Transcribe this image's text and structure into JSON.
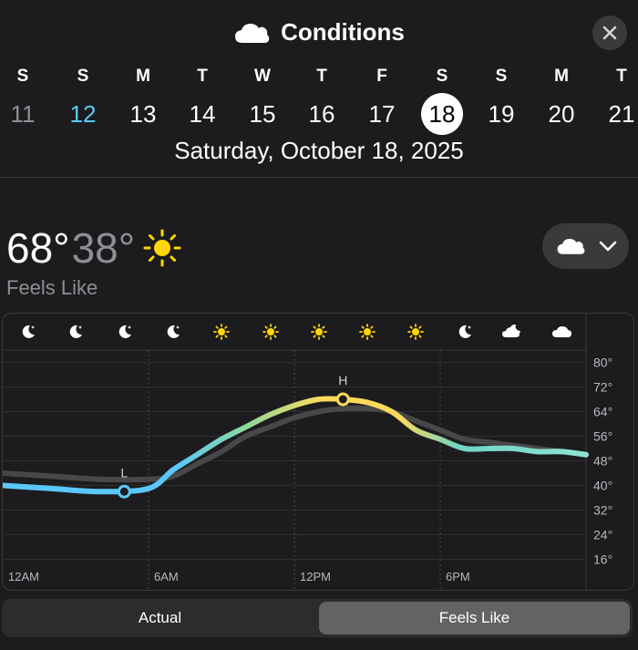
{
  "header": {
    "title": "Conditions",
    "title_icon": "cloud-icon",
    "close_icon": "close-icon"
  },
  "days": [
    {
      "dow": "S",
      "num": "11",
      "state": "muted"
    },
    {
      "dow": "S",
      "num": "12",
      "state": "today"
    },
    {
      "dow": "M",
      "num": "13",
      "state": ""
    },
    {
      "dow": "T",
      "num": "14",
      "state": ""
    },
    {
      "dow": "W",
      "num": "15",
      "state": ""
    },
    {
      "dow": "T",
      "num": "16",
      "state": ""
    },
    {
      "dow": "F",
      "num": "17",
      "state": ""
    },
    {
      "dow": "S",
      "num": "18",
      "state": "selected"
    },
    {
      "dow": "S",
      "num": "19",
      "state": ""
    },
    {
      "dow": "M",
      "num": "20",
      "state": ""
    },
    {
      "dow": "T",
      "num": "21",
      "state": ""
    }
  ],
  "selected_date": "Saturday, October 18, 2025",
  "summary": {
    "high": "68°",
    "low": "38°",
    "icon": "sun-icon",
    "metric_label": "Feels Like"
  },
  "picker": {
    "icon": "cloud-icon",
    "chevron": "chevron-down-icon"
  },
  "hourly_icons": [
    "moon-icon",
    "moon-icon",
    "moon-icon",
    "moon-icon",
    "sun-icon",
    "sun-icon",
    "sun-icon",
    "sun-icon",
    "sun-icon",
    "moon-icon",
    "moon-cloud-icon",
    "cloud-icon"
  ],
  "chart_data": {
    "type": "line",
    "ylim": [
      12,
      84
    ],
    "y_ticks": [
      "80°",
      "72°",
      "64°",
      "56°",
      "48°",
      "40°",
      "32°",
      "24°",
      "16°"
    ],
    "y_tick_values": [
      80,
      72,
      64,
      56,
      48,
      40,
      32,
      24,
      16
    ],
    "x_ticks": [
      "12AM",
      "6AM",
      "12PM",
      "6PM"
    ],
    "x_tick_values": [
      0,
      6,
      12,
      18
    ],
    "x_range": [
      0,
      24
    ],
    "high_marker": {
      "label": "H",
      "x": 14,
      "y": 68
    },
    "low_marker": {
      "label": "L",
      "x": 5,
      "y": 38
    },
    "series": [
      {
        "name": "Actual",
        "color": "#48484a",
        "x": [
          0,
          2,
          4,
          6,
          7,
          8,
          9,
          10,
          11,
          12,
          13,
          14,
          15,
          16,
          17,
          18,
          19,
          20,
          21,
          22,
          23,
          24
        ],
        "y": [
          44,
          43,
          42,
          42,
          43,
          47,
          51,
          56,
          59,
          62,
          64,
          65,
          65,
          64,
          61,
          58,
          55,
          54,
          53,
          52,
          51,
          50
        ]
      },
      {
        "name": "Feels Like",
        "x": [
          0,
          2,
          4,
          6,
          7,
          8,
          9,
          10,
          11,
          12,
          13,
          14,
          15,
          16,
          17,
          18,
          19,
          20,
          21,
          22,
          23,
          24
        ],
        "y": [
          40,
          39,
          38,
          39,
          45,
          50,
          55,
          59,
          63,
          66,
          68,
          68,
          67,
          64,
          58,
          55,
          52,
          52,
          52,
          51,
          51,
          50
        ]
      }
    ]
  },
  "segmented": {
    "actual": "Actual",
    "feels_like": "Feels Like"
  }
}
